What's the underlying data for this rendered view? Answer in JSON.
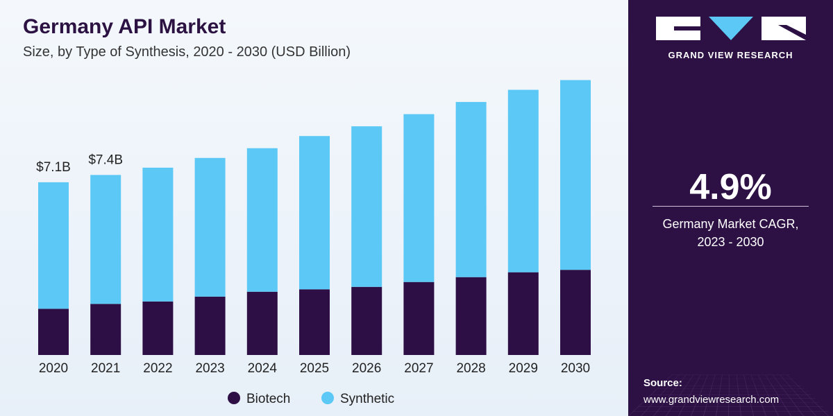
{
  "header": {
    "title": "Germany API Market",
    "subtitle": "Size, by Type of Synthesis, 2020 - 2030 (USD Billion)"
  },
  "sidebar": {
    "brand": "GRAND VIEW RESEARCH",
    "cagr_value": "4.9%",
    "cagr_label_line1": "Germany Market CAGR,",
    "cagr_label_line2": "2023 - 2030",
    "source_label": "Source:",
    "source_url": "www.grandviewresearch.com"
  },
  "colors": {
    "biotech": "#2d0f45",
    "synthetic": "#5bc8f5",
    "panel": "#2d1144"
  },
  "chart_data": {
    "type": "bar",
    "stacked": true,
    "categories": [
      "2020",
      "2021",
      "2022",
      "2023",
      "2024",
      "2025",
      "2026",
      "2027",
      "2028",
      "2029",
      "2030"
    ],
    "series": [
      {
        "name": "Biotech",
        "values": [
          1.9,
          2.1,
          2.2,
          2.4,
          2.6,
          2.7,
          2.8,
          3.0,
          3.2,
          3.4,
          3.5
        ]
      },
      {
        "name": "Synthetic",
        "values": [
          5.2,
          5.3,
          5.5,
          5.7,
          5.9,
          6.3,
          6.6,
          6.9,
          7.2,
          7.5,
          7.8
        ]
      }
    ],
    "data_labels": [
      {
        "category": "2020",
        "text": "$7.1B"
      },
      {
        "category": "2021",
        "text": "$7.4B"
      }
    ],
    "legend": [
      "Biotech",
      "Synthetic"
    ],
    "legend_position": "bottom-center",
    "ylim": [
      0,
      11.4
    ],
    "grid": false
  }
}
